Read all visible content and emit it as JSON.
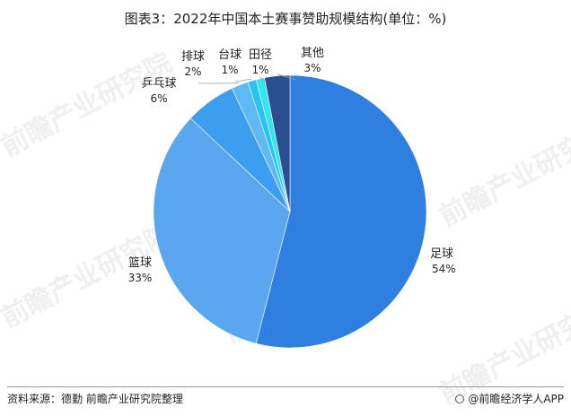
{
  "title": "图表3：2022年中国本土赛事赞助规模结构(单位：%)",
  "source": "资料来源：德勤 前瞻产业研究院整理",
  "credit": "@前瞻经济学人APP",
  "watermark": "前瞻产业研究院",
  "chart_data": {
    "type": "pie",
    "title": "2022年中国本土赛事赞助规模结构(单位：%)",
    "unit": "%",
    "start": "12 o'clock",
    "direction": "clockwise",
    "slices": [
      {
        "label": "足球",
        "value": 54,
        "display": "54%",
        "color": "#2f7fe0"
      },
      {
        "label": "篮球",
        "value": 33,
        "display": "33%",
        "color": "#5aa6ef"
      },
      {
        "label": "乒乓球",
        "value": 6,
        "display": "6%",
        "color": "#3d9ef0"
      },
      {
        "label": "排球",
        "value": 2,
        "display": "2%",
        "color": "#5fb9f3"
      },
      {
        "label": "台球",
        "value": 1,
        "display": "1%",
        "color": "#27c3f5"
      },
      {
        "label": "田径",
        "value": 1,
        "display": "1%",
        "color": "#34e4ee"
      },
      {
        "label": "其他",
        "value": 3,
        "display": "3%",
        "color": "#2a4f90"
      }
    ]
  }
}
